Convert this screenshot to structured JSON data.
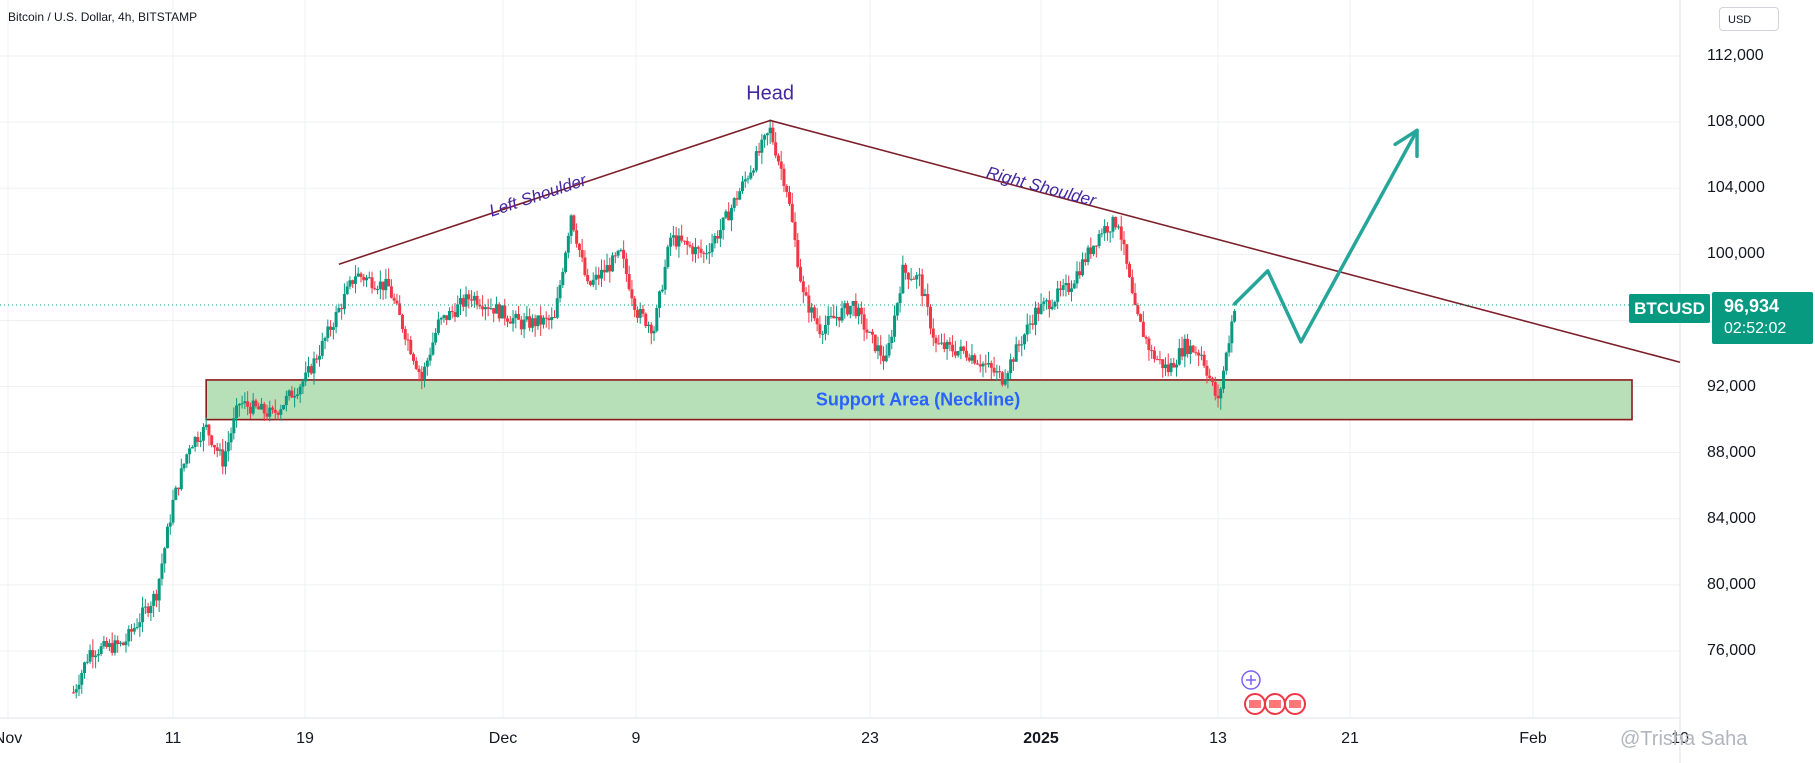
{
  "header": {
    "title": "Bitcoin / U.S. Dollar, 4h, BITSTAMP",
    "currency": "USD"
  },
  "ticker": {
    "symbol": "BTCUSD",
    "price": "96,934",
    "countdown": "02:52:02"
  },
  "watermark": "@Trisha Saha",
  "colors": {
    "up": "#089981",
    "down": "#f23645",
    "zone_fill": "#b8e0b8",
    "zone_border": "#8b1a1a",
    "trendline": "#7d1f2b",
    "projection": "#26a69a",
    "label_purple": "#4527a0",
    "zone_label": "#2962ff",
    "grid": "#eef0f3",
    "last_price_line": "#089981"
  },
  "chart_data": {
    "type": "candlestick",
    "title": "Bitcoin / U.S. Dollar, 4h, BITSTAMP",
    "x_ticks": [
      "Nov",
      "11",
      "19",
      "Dec",
      "9",
      "23",
      "2025",
      "13",
      "21",
      "Feb",
      "10"
    ],
    "ylim": [
      72000,
      114000
    ],
    "y_ticks": [
      76000,
      80000,
      84000,
      88000,
      92000,
      96000,
      100000,
      104000,
      108000,
      112000
    ],
    "y_tick_labels": [
      "76,000",
      "80,000",
      "84,000",
      "88,000",
      "92,000",
      "",
      "100,000",
      "104,000",
      "108,000",
      "112,000"
    ],
    "last_price": 96934,
    "support_zone": {
      "label": "Support Area (Neckline)",
      "low": 90000,
      "high": 92400
    },
    "pattern_points": [
      {
        "label": "Left Shoulder",
        "date": "Nov 21",
        "price": 99400
      },
      {
        "label": "Head",
        "date": "Dec 17",
        "price": 108100
      },
      {
        "label": "Right Shoulder",
        "date": "Jan 7",
        "price": 102500
      }
    ],
    "projection_path": [
      {
        "date": "Jan 14",
        "price": 97000
      },
      {
        "date": "Jan 16",
        "price": 99000
      },
      {
        "date": "Jan 18",
        "price": 94700
      },
      {
        "date": "Jan 25",
        "price": 107500
      }
    ],
    "price_path": [
      {
        "date": "Nov 5",
        "price": 73500
      },
      {
        "date": "Nov 6",
        "price": 76000
      },
      {
        "date": "Nov 8",
        "price": 76400
      },
      {
        "date": "Nov 10",
        "price": 79500
      },
      {
        "date": "Nov 11",
        "price": 85000
      },
      {
        "date": "Nov 12",
        "price": 88500
      },
      {
        "date": "Nov 13",
        "price": 89500
      },
      {
        "date": "Nov 14",
        "price": 87500
      },
      {
        "date": "Nov 15",
        "price": 91000
      },
      {
        "date": "Nov 17",
        "price": 90300
      },
      {
        "date": "Nov 19",
        "price": 92500
      },
      {
        "date": "Nov 20",
        "price": 94500
      },
      {
        "date": "Nov 22",
        "price": 98800
      },
      {
        "date": "Nov 24",
        "price": 98000
      },
      {
        "date": "Nov 26",
        "price": 92500
      },
      {
        "date": "Nov 27",
        "price": 95800
      },
      {
        "date": "Nov 29",
        "price": 97500
      },
      {
        "date": "Dec 2",
        "price": 95800
      },
      {
        "date": "Dec 4",
        "price": 96000
      },
      {
        "date": "Dec 5",
        "price": 102500
      },
      {
        "date": "Dec 6",
        "price": 98000
      },
      {
        "date": "Dec 8",
        "price": 100000
      },
      {
        "date": "Dec 9",
        "price": 96500
      },
      {
        "date": "Dec 10",
        "price": 95500
      },
      {
        "date": "Dec 11",
        "price": 101000
      },
      {
        "date": "Dec 13",
        "price": 100000
      },
      {
        "date": "Dec 14",
        "price": 101500
      },
      {
        "date": "Dec 16",
        "price": 105500
      },
      {
        "date": "Dec 17",
        "price": 107500
      },
      {
        "date": "Dec 18",
        "price": 104000
      },
      {
        "date": "Dec 19",
        "price": 97500
      },
      {
        "date": "Dec 20",
        "price": 95500
      },
      {
        "date": "Dec 22",
        "price": 97000
      },
      {
        "date": "Dec 23",
        "price": 95000
      },
      {
        "date": "Dec 24",
        "price": 93500
      },
      {
        "date": "Dec 25",
        "price": 99000
      },
      {
        "date": "Dec 26",
        "price": 98500
      },
      {
        "date": "Dec 27",
        "price": 94500
      },
      {
        "date": "Dec 29",
        "price": 94000
      },
      {
        "date": "Dec 31",
        "price": 92500
      },
      {
        "date": "Jan 2",
        "price": 96500
      },
      {
        "date": "Jan 4",
        "price": 98000
      },
      {
        "date": "Jan 6",
        "price": 101500
      },
      {
        "date": "Jan 7",
        "price": 102000
      },
      {
        "date": "Jan 8",
        "price": 96500
      },
      {
        "date": "Jan 9",
        "price": 94000
      },
      {
        "date": "Jan 10",
        "price": 93000
      },
      {
        "date": "Jan 11",
        "price": 94500
      },
      {
        "date": "Jan 12",
        "price": 94000
      },
      {
        "date": "Jan 13",
        "price": 91000
      },
      {
        "date": "Jan 14",
        "price": 96900
      }
    ]
  }
}
